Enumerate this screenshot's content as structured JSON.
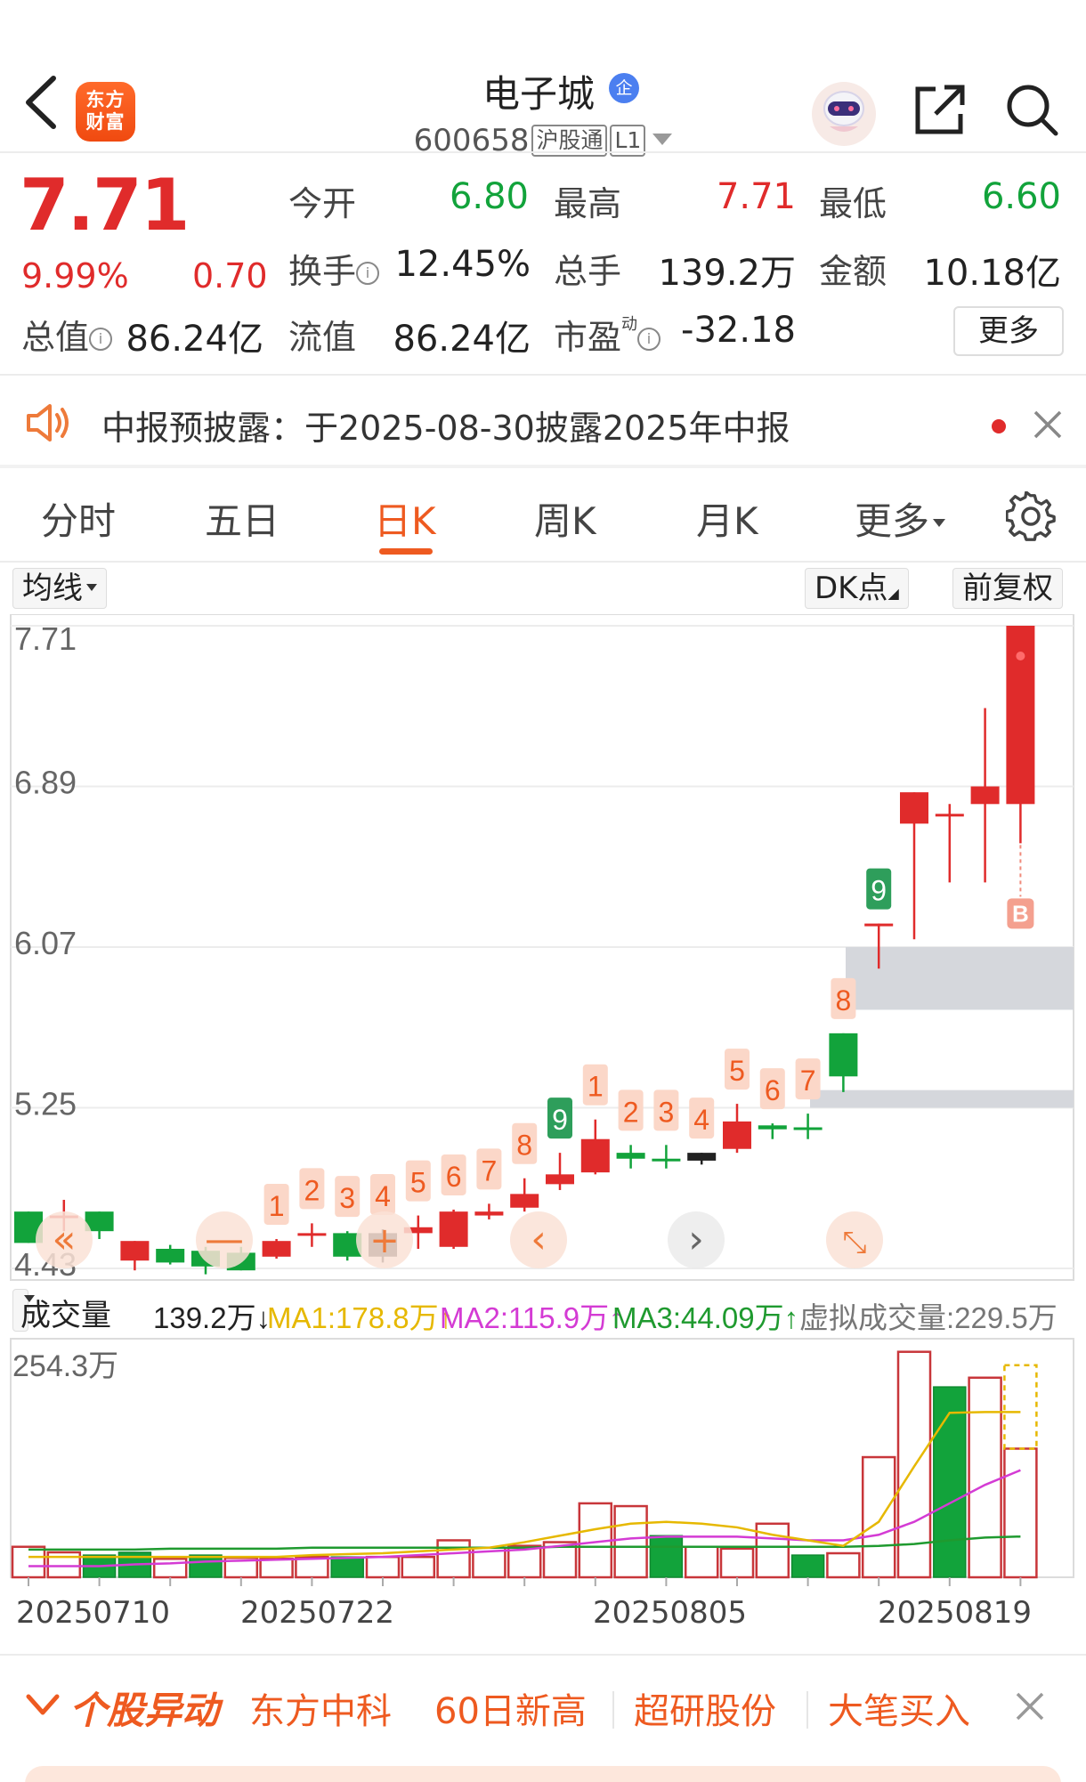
{
  "header": {
    "logo_text_line1": "东方",
    "logo_text_line2": "财富",
    "stock_name": "电子城",
    "enterprise_badge": "企",
    "stock_code": "600658",
    "connect_tag": "沪股通",
    "level_tag": "L1",
    "icons": [
      "back-icon",
      "robot-icon",
      "share-icon",
      "search-icon"
    ]
  },
  "quote": {
    "price": "7.71",
    "change_pct": "9.99%",
    "change": "0.70",
    "fields": {
      "open_label": "今开",
      "open_value": "6.80",
      "high_label": "最高",
      "high_value": "7.71",
      "low_label": "最低",
      "low_value": "6.60",
      "turnover_label": "换手",
      "turnover_value": "12.45%",
      "volume_label": "总手",
      "volume_value": "139.2万",
      "amount_label": "金额",
      "amount_value": "10.18亿",
      "mktcap_label": "总值",
      "mktcap_value": "86.24亿",
      "float_label": "流值",
      "float_value": "86.24亿",
      "pe_label": "市盈",
      "pe_sup": "动",
      "pe_value": "-32.18"
    },
    "more_button": "更多",
    "colors": {
      "up": "#e02b2b",
      "down": "#12a33b"
    }
  },
  "notice": {
    "text": "中报预披露：于2025-08-30披露2025年中报"
  },
  "tabs": {
    "items": [
      "分时",
      "五日",
      "日K",
      "周K",
      "月K",
      "更多"
    ],
    "active": "日K"
  },
  "chart_controls": {
    "ma_select": "均线",
    "dk_button": "DK点",
    "adjust_button": "前复权"
  },
  "chart_data": [
    {
      "type": "candlestick",
      "title": "",
      "y_ticks": [
        "7.71",
        "6.89",
        "6.07",
        "5.25",
        "4.43"
      ],
      "ylim": [
        4.43,
        7.71
      ],
      "candles": [
        {
          "o": 4.72,
          "c": 4.56,
          "h": 4.72,
          "l": 4.56,
          "seq": ""
        },
        {
          "o": 4.7,
          "c": 4.7,
          "h": 4.78,
          "l": 4.62,
          "seq": ""
        },
        {
          "o": 4.62,
          "c": 4.72,
          "h": 4.72,
          "l": 4.58,
          "seq": ""
        },
        {
          "o": 4.47,
          "c": 4.57,
          "h": 4.57,
          "l": 4.42,
          "seq": ""
        },
        {
          "o": 4.53,
          "c": 4.46,
          "h": 4.55,
          "l": 4.45,
          "seq": ""
        },
        {
          "o": 4.44,
          "c": 4.52,
          "h": 4.54,
          "l": 4.4,
          "seq": ""
        },
        {
          "o": 4.51,
          "c": 4.42,
          "h": 4.54,
          "l": 4.42,
          "seq": ""
        },
        {
          "o": 4.49,
          "c": 4.57,
          "h": 4.58,
          "l": 4.48,
          "seq": "1"
        },
        {
          "o": 4.61,
          "c": 4.61,
          "h": 4.66,
          "l": 4.54,
          "seq": "2"
        },
        {
          "o": 4.49,
          "c": 4.61,
          "h": 4.62,
          "l": 4.47,
          "seq": "3"
        },
        {
          "o": 4.61,
          "c": 4.49,
          "h": 4.63,
          "l": 4.46,
          "seq": "4"
        },
        {
          "o": 4.61,
          "c": 4.64,
          "h": 4.7,
          "l": 4.53,
          "seq": "5"
        },
        {
          "o": 4.54,
          "c": 4.72,
          "h": 4.73,
          "l": 4.53,
          "seq": "6"
        },
        {
          "o": 4.7,
          "c": 4.72,
          "h": 4.76,
          "l": 4.68,
          "seq": "7"
        },
        {
          "o": 4.74,
          "c": 4.81,
          "h": 4.89,
          "l": 4.72,
          "seq": "8"
        },
        {
          "o": 4.86,
          "c": 4.91,
          "h": 5.02,
          "l": 4.83,
          "seq": "9"
        },
        {
          "o": 4.92,
          "c": 5.09,
          "h": 5.19,
          "l": 4.91,
          "seq": "1"
        },
        {
          "o": 5.02,
          "c": 4.99,
          "h": 5.06,
          "l": 4.94,
          "seq": "2"
        },
        {
          "o": 4.99,
          "c": 4.99,
          "h": 5.06,
          "l": 4.94,
          "seq": "3"
        },
        {
          "o": 4.98,
          "c": 5.02,
          "h": 5.02,
          "l": 4.96,
          "seq": "4"
        },
        {
          "o": 5.04,
          "c": 5.18,
          "h": 5.27,
          "l": 5.02,
          "seq": "5"
        },
        {
          "o": 5.16,
          "c": 5.14,
          "h": 5.17,
          "l": 5.09,
          "seq": "6"
        },
        {
          "o": 5.15,
          "c": 5.15,
          "h": 5.22,
          "l": 5.09,
          "seq": "7"
        },
        {
          "o": 5.41,
          "c": 5.63,
          "h": 5.63,
          "l": 5.33,
          "seq": "8"
        },
        {
          "o": 6.19,
          "c": 6.19,
          "h": 6.19,
          "l": 5.96,
          "seq": "9"
        },
        {
          "o": 6.7,
          "c": 6.86,
          "h": 6.86,
          "l": 6.11,
          "seq": ""
        },
        {
          "o": 6.75,
          "c": 6.75,
          "h": 6.8,
          "l": 6.4,
          "seq": ""
        },
        {
          "o": 6.8,
          "c": 6.89,
          "h": 7.29,
          "l": 6.4,
          "seq": ""
        },
        {
          "o": 6.8,
          "c": 7.71,
          "h": 7.71,
          "l": 6.6,
          "seq": ""
        }
      ],
      "buy_signal": "B",
      "nav_icons": [
        "double-left-icon",
        "minus-icon",
        "plus-icon",
        "left-icon",
        "right-icon",
        "expand-icon"
      ]
    },
    {
      "type": "bar",
      "title": "",
      "select_label": "成交量",
      "current": "139.2万↓",
      "ma1": "MA1:178.8万↑",
      "ma2": "MA2:115.9万↑",
      "ma3": "MA3:44.09万↑",
      "virtual": "虚拟成交量:229.5万",
      "y_tick": "254.3万",
      "ylim": [
        0,
        254.3
      ],
      "values": [
        33,
        27,
        24,
        27,
        20,
        24,
        21,
        20,
        22,
        22,
        22,
        22,
        40,
        32,
        34,
        38,
        80,
        77,
        45,
        33,
        31,
        58,
        24,
        26,
        130,
        244,
        206,
        216,
        139.2
      ],
      "up": [
        true,
        true,
        false,
        false,
        true,
        false,
        true,
        true,
        true,
        false,
        true,
        true,
        true,
        true,
        true,
        true,
        true,
        true,
        false,
        true,
        true,
        true,
        false,
        true,
        true,
        true,
        false,
        true,
        true
      ],
      "virtual_value": 229.5,
      "ma1_line": [
        22,
        22,
        22,
        22,
        22,
        22,
        22,
        22,
        24,
        25,
        26,
        28,
        30,
        32,
        38,
        45,
        52,
        58,
        60,
        58,
        54,
        46,
        40,
        34,
        60,
        120,
        178,
        178.8,
        178.8
      ],
      "ma2_line": [
        12,
        12,
        12,
        14,
        15,
        17,
        18,
        19,
        20,
        21,
        22,
        24,
        26,
        28,
        30,
        34,
        38,
        42,
        44,
        44,
        44,
        42,
        40,
        40,
        46,
        60,
        80,
        100,
        115.9
      ],
      "ma3_line": [
        30,
        30,
        30,
        30,
        31,
        31,
        31,
        31,
        32,
        32,
        32,
        32,
        32,
        32,
        32,
        33,
        33,
        33,
        33,
        33,
        33,
        33,
        33,
        33,
        34,
        36,
        40,
        43,
        44.09
      ],
      "x_ticks": [
        "20250710",
        "20250722",
        "20250805",
        "20250819"
      ],
      "colors": {
        "ma1": "#e6b800",
        "ma2": "#d43bd4",
        "ma3": "#1f9a2f"
      }
    }
  ],
  "alert_bar": {
    "title": "个股异动",
    "items": [
      "东方中科",
      "60日新高",
      "超研股份",
      "大笔买入"
    ]
  }
}
